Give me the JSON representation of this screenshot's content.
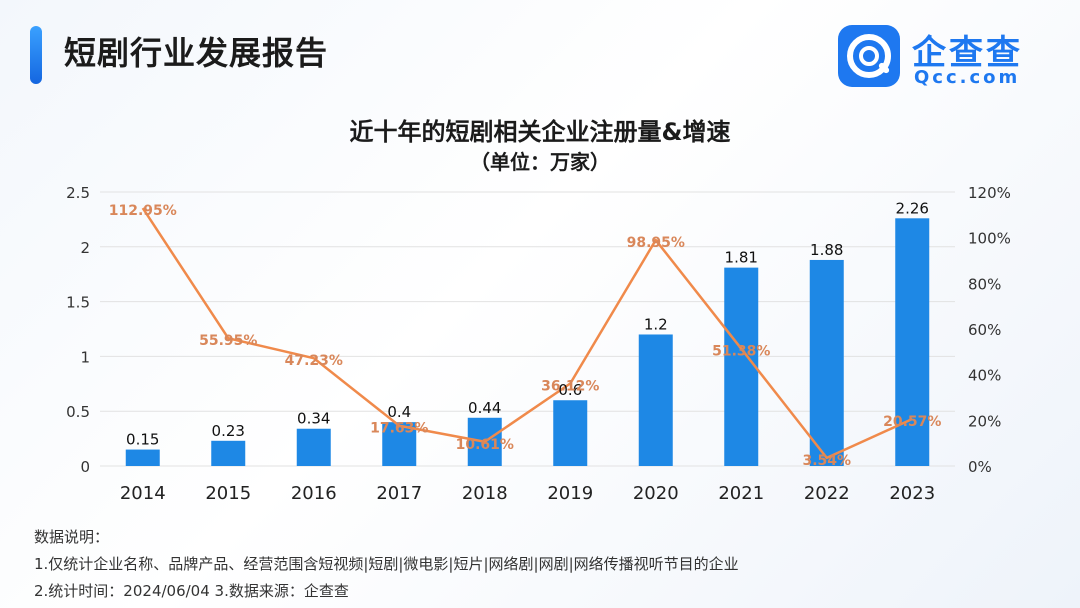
{
  "header": {
    "title": "短剧行业发展报告"
  },
  "logo": {
    "name_cn": "企查查",
    "name_en": "Qcc.com"
  },
  "chart_data": {
    "type": "bar+line",
    "title": "近十年的短剧相关企业注册量&增速",
    "subtitle": "（单位：万家）",
    "categories": [
      "2014",
      "2015",
      "2016",
      "2017",
      "2018",
      "2019",
      "2020",
      "2021",
      "2022",
      "2023"
    ],
    "series": [
      {
        "name": "",
        "kind": "bar",
        "axis": "left",
        "values": [
          0.15,
          0.23,
          0.34,
          0.4,
          0.44,
          0.6,
          1.2,
          1.81,
          1.88,
          2.26
        ],
        "labels": [
          "0.15",
          "0.23",
          "0.34",
          "0.4",
          "0.44",
          "0.6",
          "1.2",
          "1.81",
          "1.88",
          "2.26"
        ]
      },
      {
        "name": "",
        "kind": "line",
        "axis": "right",
        "values": [
          112.95,
          55.95,
          47.23,
          17.63,
          10.61,
          36.12,
          98.95,
          51.38,
          3.54,
          20.57
        ],
        "labels": [
          "112.95%",
          "55.95%",
          "47.23%",
          "17.63%",
          "10.61%",
          "36.12%",
          "98.95%",
          "51.38%",
          "3.54%",
          "20.57%"
        ]
      }
    ],
    "left_axis": {
      "min": 0,
      "max": 2.5,
      "ticks": [
        "0",
        "0.5",
        "1",
        "1.5",
        "2",
        "2.5"
      ]
    },
    "right_axis": {
      "min": 0,
      "max": 120,
      "ticks": [
        "0%",
        "20%",
        "40%",
        "60%",
        "80%",
        "100%",
        "120%"
      ]
    },
    "grid": true,
    "colors": {
      "bar": "#1e88e5",
      "line": "#f08a4b",
      "line_label": "#d9875a",
      "grid": "#e2e2e2"
    }
  },
  "notes": {
    "heading": "数据说明：",
    "line1": "1.仅统计企业名称、品牌产品、经营范围含短视频|短剧|微电影|短片|网络剧|网剧|网络传播视听节目的企业",
    "line2": "2.统计时间：2024/06/04    3.数据来源：企查查"
  }
}
